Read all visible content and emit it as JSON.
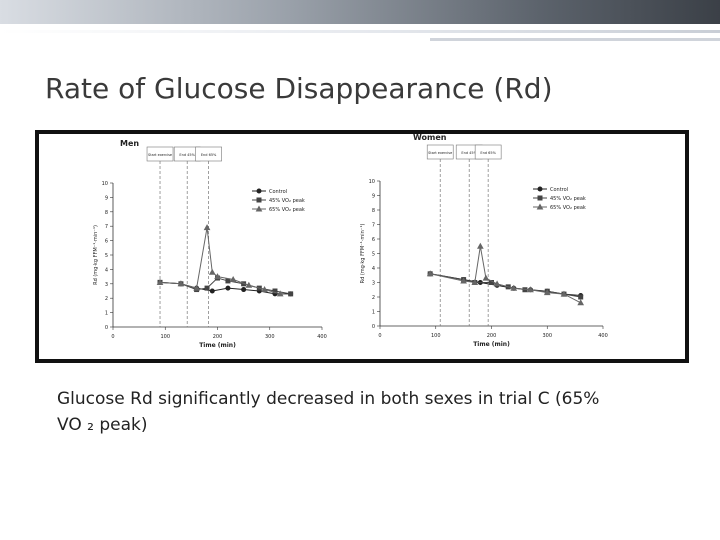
{
  "slide": {
    "title": "Rate of Glucose Disappearance (Rd)",
    "body": [
      "Glucose Rd significantly decreased in both sexes in trial C  (65%",
      "VO ₂ peak)"
    ]
  },
  "chart_data": [
    {
      "type": "line",
      "title": "Men",
      "x_label": "Time (min)",
      "y_label": "Rd (mg·kg FFM⁻¹·min⁻¹)",
      "xlim": [
        0,
        400
      ],
      "xticks": [
        0,
        100,
        200,
        300,
        400
      ],
      "ylim": [
        0,
        10
      ],
      "yticks": [
        0,
        1,
        2,
        3,
        4,
        5,
        6,
        7,
        8,
        9,
        10
      ],
      "legend": "upper right",
      "markers": [
        {
          "x": 90,
          "label": "Start exercise"
        },
        {
          "x": 142,
          "label": "End 45%"
        },
        {
          "x": 183,
          "label": "End 65%"
        }
      ],
      "series": [
        {
          "name": "Control",
          "color": "#222222",
          "marker": "circle",
          "x": [
            90,
            130,
            160,
            190,
            220,
            250,
            280,
            310,
            340
          ],
          "values": [
            3.1,
            3.0,
            2.7,
            2.5,
            2.7,
            2.6,
            2.5,
            2.3,
            2.3
          ]
        },
        {
          "name": "45% VO₂ peak",
          "color": "#444444",
          "marker": "square",
          "x": [
            90,
            130,
            160,
            180,
            200,
            220,
            250,
            280,
            310,
            340
          ],
          "values": [
            3.1,
            3.0,
            2.6,
            2.7,
            3.4,
            3.2,
            3.0,
            2.7,
            2.5,
            2.3
          ]
        },
        {
          "name": "65% VO₂ peak",
          "color": "#666666",
          "marker": "triangle",
          "x": [
            90,
            130,
            160,
            180,
            190,
            200,
            230,
            260,
            290,
            320
          ],
          "values": [
            3.1,
            3.0,
            2.7,
            6.9,
            3.8,
            3.5,
            3.3,
            2.9,
            2.6,
            2.3
          ]
        }
      ]
    },
    {
      "type": "line",
      "title": "Women",
      "x_label": "Time (min)",
      "y_label": "Rd (mg·kg FFM⁻¹·min⁻¹)",
      "xlim": [
        0,
        400
      ],
      "xticks": [
        0,
        100,
        200,
        300,
        400
      ],
      "ylim": [
        0,
        10
      ],
      "yticks": [
        0,
        1,
        2,
        3,
        4,
        5,
        6,
        7,
        8,
        9,
        10
      ],
      "legend": "upper right",
      "markers": [
        {
          "x": 108,
          "label": "Start exercise"
        },
        {
          "x": 160,
          "label": "End 45%"
        },
        {
          "x": 194,
          "label": "End 65%"
        }
      ],
      "series": [
        {
          "name": "Control",
          "color": "#222222",
          "marker": "circle",
          "x": [
            90,
            150,
            180,
            210,
            240,
            270,
            300,
            330,
            360
          ],
          "values": [
            3.6,
            3.2,
            3.0,
            2.8,
            2.6,
            2.5,
            2.4,
            2.2,
            2.1
          ]
        },
        {
          "name": "45% VO₂ peak",
          "color": "#444444",
          "marker": "square",
          "x": [
            90,
            150,
            170,
            200,
            230,
            260,
            300,
            330,
            360
          ],
          "values": [
            3.6,
            3.2,
            3.0,
            3.0,
            2.7,
            2.5,
            2.4,
            2.2,
            2.0
          ]
        },
        {
          "name": "65% VO₂ peak",
          "color": "#666666",
          "marker": "triangle",
          "x": [
            90,
            150,
            170,
            180,
            190,
            210,
            240,
            270,
            300,
            330,
            360
          ],
          "values": [
            3.6,
            3.1,
            3.0,
            5.5,
            3.3,
            2.9,
            2.6,
            2.5,
            2.3,
            2.2,
            1.6
          ]
        }
      ]
    }
  ]
}
